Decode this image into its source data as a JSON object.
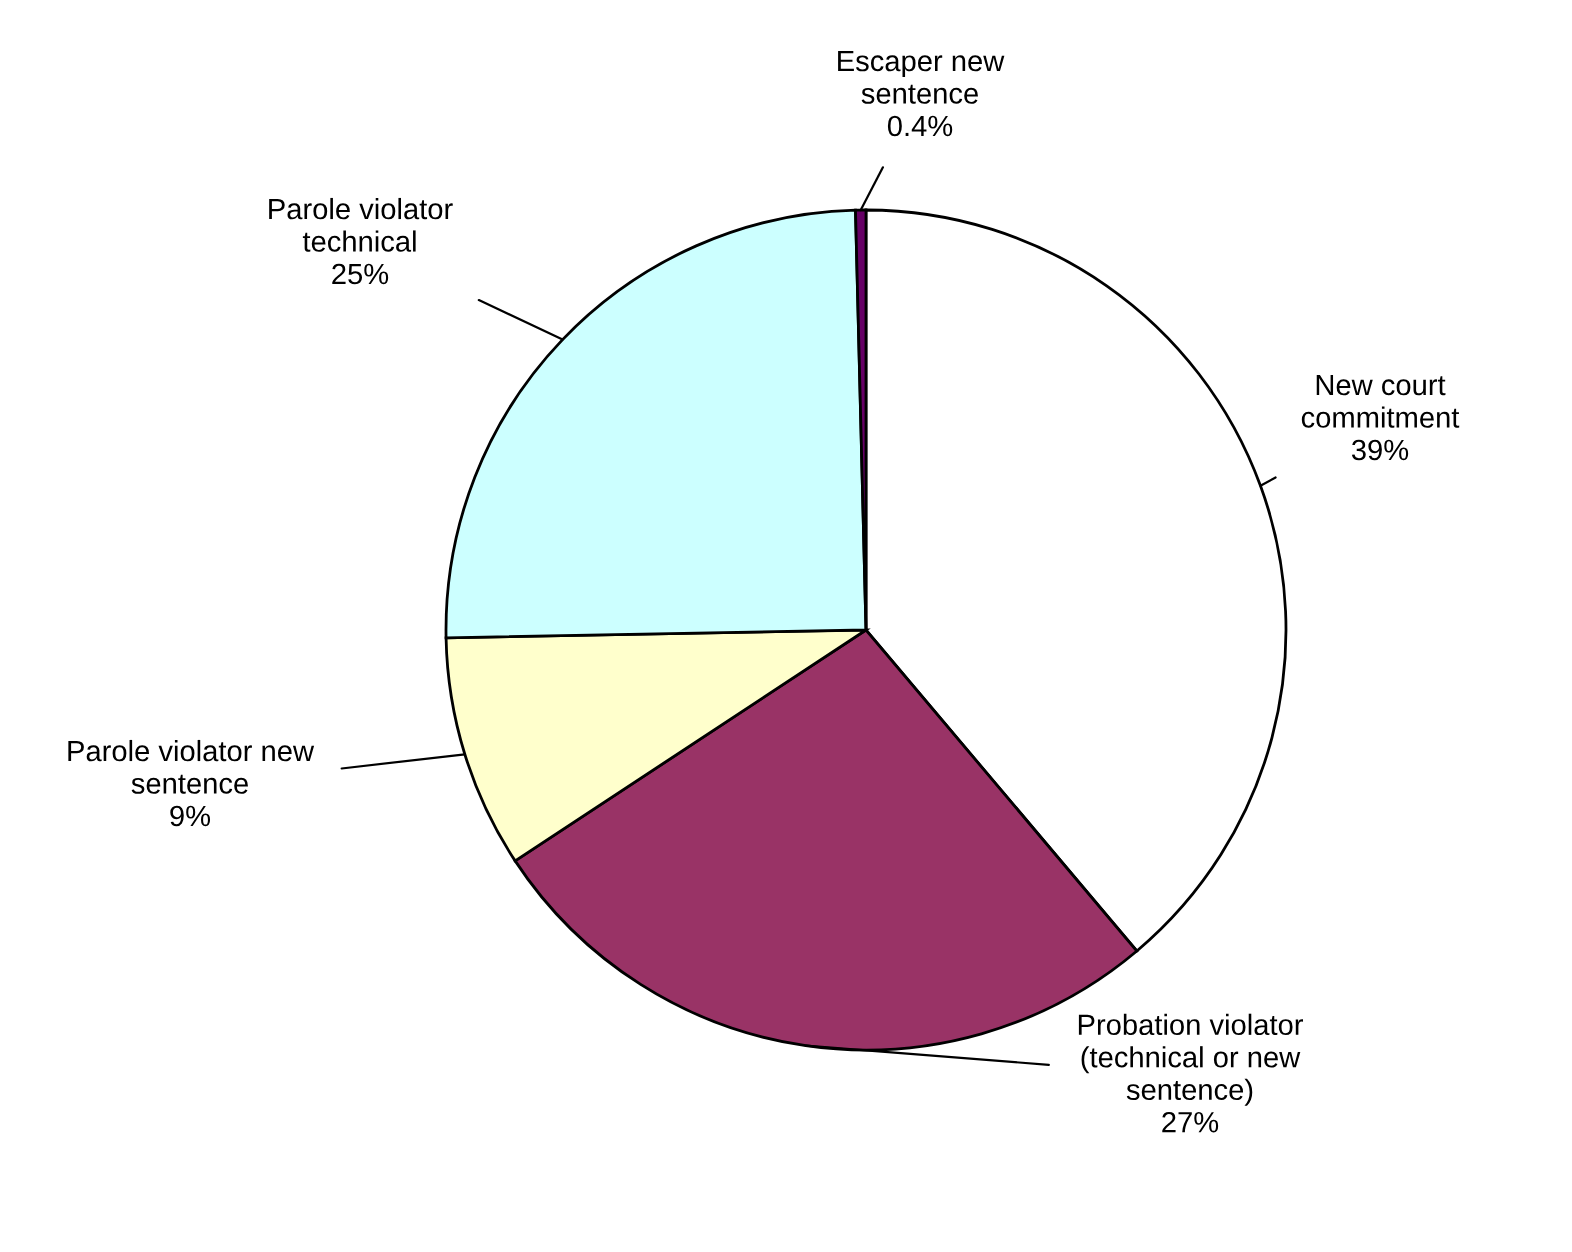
{
  "chart_data": {
    "type": "pie",
    "categories": [
      "New court\ncommitment",
      "Probation violator\n(technical or new\nsentence)",
      "Parole violator new\nsentence",
      "Parole violator\ntechnical",
      "Escaper new\nsentence"
    ],
    "values": [
      39,
      27,
      9,
      25,
      0.4
    ],
    "value_labels": [
      "39%",
      "27%",
      "9%",
      "25%",
      "0.4%"
    ],
    "colors": [
      "#ffffff",
      "#993366",
      "#ffffcc",
      "#ccffff",
      "#660066"
    ]
  }
}
